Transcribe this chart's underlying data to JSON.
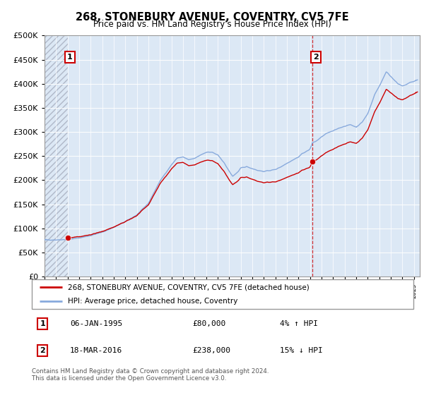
{
  "title": "268, STONEBURY AVENUE, COVENTRY, CV5 7FE",
  "subtitle": "Price paid vs. HM Land Registry's House Price Index (HPI)",
  "hpi_label": "HPI: Average price, detached house, Coventry",
  "property_label": "268, STONEBURY AVENUE, COVENTRY, CV5 7FE (detached house)",
  "annotation1_label": "1",
  "annotation1_date": "06-JAN-1995",
  "annotation1_price": "£80,000",
  "annotation1_hpi": "4% ↑ HPI",
  "annotation2_label": "2",
  "annotation2_date": "18-MAR-2016",
  "annotation2_price": "£238,000",
  "annotation2_hpi": "15% ↓ HPI",
  "footer": "Contains HM Land Registry data © Crown copyright and database right 2024.\nThis data is licensed under the Open Government Licence v3.0.",
  "property_color": "#cc0000",
  "hpi_color": "#88aadd",
  "point1_x": 1995.03,
  "point1_y": 80000,
  "point2_x": 2016.21,
  "point2_y": 238000,
  "ylim": [
    0,
    500000
  ],
  "xlim_min": 1993.0,
  "xlim_max": 2025.5,
  "hatch_end_x": 1995.03,
  "chart_bg": "#dce8f5",
  "hatch_bg": "#dce8f5",
  "hatch_color": "#b0b8c8"
}
